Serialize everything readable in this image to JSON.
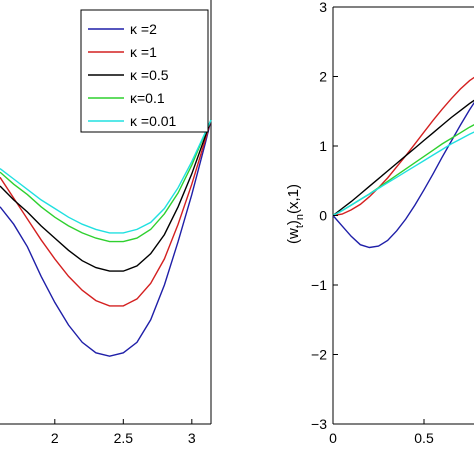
{
  "chart_data": [
    {
      "type": "line",
      "title": "",
      "xlabel": "",
      "ylabel": "",
      "xlim": [
        1.6,
        3.14
      ],
      "ylim": [
        -1.8,
        0.6
      ],
      "xticks": [
        2,
        2.5,
        3
      ],
      "xtick_labels": [
        "2",
        "2.5",
        "3"
      ],
      "grid": false,
      "legend_placement": "top-right",
      "series": [
        {
          "name": "κ =2",
          "color": "#1f1fa8",
          "x": [
            1.6,
            1.7,
            1.8,
            1.9,
            2.0,
            2.1,
            2.2,
            2.3,
            2.4,
            2.5,
            2.6,
            2.7,
            2.8,
            2.9,
            3.0,
            3.1,
            3.14
          ],
          "y": [
            -0.55,
            -0.65,
            -0.78,
            -0.95,
            -1.1,
            -1.23,
            -1.33,
            -1.39,
            -1.41,
            -1.39,
            -1.33,
            -1.2,
            -1.0,
            -0.75,
            -0.48,
            -0.18,
            -0.05
          ]
        },
        {
          "name": "κ =1",
          "color": "#d42020",
          "x": [
            1.6,
            1.7,
            1.8,
            1.9,
            2.0,
            2.1,
            2.2,
            2.3,
            2.4,
            2.5,
            2.6,
            2.7,
            2.8,
            2.9,
            3.0,
            3.1,
            3.14
          ],
          "y": [
            -0.38,
            -0.5,
            -0.62,
            -0.74,
            -0.85,
            -0.95,
            -1.03,
            -1.09,
            -1.12,
            -1.12,
            -1.08,
            -0.99,
            -0.85,
            -0.65,
            -0.42,
            -0.16,
            -0.05
          ]
        },
        {
          "name": "κ =0.5",
          "color": "#000000",
          "x": [
            1.6,
            1.7,
            1.8,
            1.9,
            2.0,
            2.1,
            2.2,
            2.3,
            2.4,
            2.5,
            2.6,
            2.7,
            2.8,
            2.9,
            3.0,
            3.1,
            3.14
          ],
          "y": [
            -0.43,
            -0.51,
            -0.58,
            -0.66,
            -0.73,
            -0.8,
            -0.86,
            -0.9,
            -0.92,
            -0.92,
            -0.89,
            -0.82,
            -0.71,
            -0.55,
            -0.36,
            -0.14,
            -0.05
          ]
        },
        {
          "name": "κ=0.1",
          "color": "#2fd02f",
          "x": [
            1.6,
            1.7,
            1.8,
            1.9,
            2.0,
            2.1,
            2.2,
            2.3,
            2.4,
            2.5,
            2.6,
            2.7,
            2.8,
            2.9,
            3.0,
            3.1,
            3.14
          ],
          "y": [
            -0.35,
            -0.42,
            -0.48,
            -0.55,
            -0.61,
            -0.66,
            -0.7,
            -0.73,
            -0.75,
            -0.75,
            -0.73,
            -0.68,
            -0.59,
            -0.47,
            -0.31,
            -0.12,
            -0.05
          ]
        },
        {
          "name": "κ =0.01",
          "color": "#20e0e0",
          "x": [
            1.6,
            1.7,
            1.8,
            1.9,
            2.0,
            2.1,
            2.2,
            2.3,
            2.4,
            2.5,
            2.6,
            2.7,
            2.8,
            2.9,
            3.0,
            3.1,
            3.14
          ],
          "y": [
            -0.33,
            -0.39,
            -0.45,
            -0.51,
            -0.56,
            -0.61,
            -0.65,
            -0.68,
            -0.7,
            -0.7,
            -0.68,
            -0.64,
            -0.56,
            -0.44,
            -0.29,
            -0.12,
            -0.05
          ]
        }
      ]
    },
    {
      "type": "line",
      "title": "",
      "xlabel": "",
      "ylabel": "(w_t)_n(x,1)",
      "xlim": [
        0,
        1
      ],
      "ylim": [
        -3,
        3
      ],
      "xticks": [
        0,
        0.5
      ],
      "xtick_labels": [
        "0",
        "0.5"
      ],
      "yticks": [
        -3,
        -2,
        -1,
        0,
        1,
        2,
        3
      ],
      "ytick_labels": [
        "−3",
        "−2",
        "−1",
        "0",
        "1",
        "2",
        "3"
      ],
      "grid": false,
      "series": [
        {
          "name": "κ =2",
          "color": "#1f1fa8",
          "x": [
            0,
            0.05,
            0.1,
            0.15,
            0.2,
            0.25,
            0.3,
            0.35,
            0.4,
            0.45,
            0.5,
            0.55,
            0.6,
            0.65,
            0.7,
            0.75,
            0.8,
            0.85,
            0.9
          ],
          "y": [
            0,
            -0.15,
            -0.3,
            -0.42,
            -0.46,
            -0.44,
            -0.36,
            -0.22,
            -0.05,
            0.15,
            0.37,
            0.6,
            0.84,
            1.07,
            1.3,
            1.52,
            1.72,
            1.88,
            1.95
          ]
        },
        {
          "name": "κ =1",
          "color": "#d42020",
          "x": [
            0,
            0.05,
            0.1,
            0.15,
            0.2,
            0.25,
            0.3,
            0.35,
            0.4,
            0.45,
            0.5,
            0.55,
            0.6,
            0.65,
            0.7,
            0.75,
            0.8,
            0.85,
            0.9
          ],
          "y": [
            0,
            0.02,
            0.08,
            0.16,
            0.27,
            0.4,
            0.54,
            0.7,
            0.86,
            1.03,
            1.2,
            1.37,
            1.53,
            1.68,
            1.82,
            1.94,
            2.03,
            2.1,
            2.14
          ]
        },
        {
          "name": "κ =0.5",
          "color": "#000000",
          "x": [
            0,
            0.05,
            0.1,
            0.15,
            0.2,
            0.25,
            0.3,
            0.35,
            0.4,
            0.45,
            0.5,
            0.55,
            0.6,
            0.65,
            0.7,
            0.75,
            0.8,
            0.85,
            0.9
          ],
          "y": [
            0,
            0.1,
            0.2,
            0.31,
            0.42,
            0.53,
            0.64,
            0.75,
            0.86,
            0.97,
            1.08,
            1.19,
            1.3,
            1.41,
            1.51,
            1.61,
            1.7,
            1.79,
            1.87
          ]
        },
        {
          "name": "κ=0.1",
          "color": "#2fd02f",
          "x": [
            0,
            0.05,
            0.1,
            0.15,
            0.2,
            0.25,
            0.3,
            0.35,
            0.4,
            0.45,
            0.5,
            0.55,
            0.6,
            0.65,
            0.7,
            0.75,
            0.8,
            0.85,
            0.9
          ],
          "y": [
            0,
            0.07,
            0.15,
            0.23,
            0.31,
            0.4,
            0.49,
            0.58,
            0.67,
            0.76,
            0.85,
            0.94,
            1.03,
            1.11,
            1.19,
            1.27,
            1.34,
            1.41,
            1.47
          ]
        },
        {
          "name": "κ =0.01",
          "color": "#20e0e0",
          "x": [
            0,
            0.05,
            0.1,
            0.15,
            0.2,
            0.25,
            0.3,
            0.35,
            0.4,
            0.45,
            0.5,
            0.55,
            0.6,
            0.65,
            0.7,
            0.75,
            0.8,
            0.85,
            0.9
          ],
          "y": [
            0,
            0.07,
            0.15,
            0.23,
            0.31,
            0.39,
            0.47,
            0.55,
            0.63,
            0.71,
            0.79,
            0.87,
            0.95,
            1.03,
            1.1,
            1.17,
            1.23,
            1.29,
            1.35
          ]
        }
      ]
    }
  ],
  "legend": {
    "entries": [
      {
        "label": "κ =2",
        "color": "#1f1fa8"
      },
      {
        "label": "κ =1",
        "color": "#d42020"
      },
      {
        "label": "κ =0.5",
        "color": "#000000"
      },
      {
        "label": "κ=0.1",
        "color": "#2fd02f"
      },
      {
        "label": "κ =0.01",
        "color": "#20e0e0"
      }
    ]
  }
}
